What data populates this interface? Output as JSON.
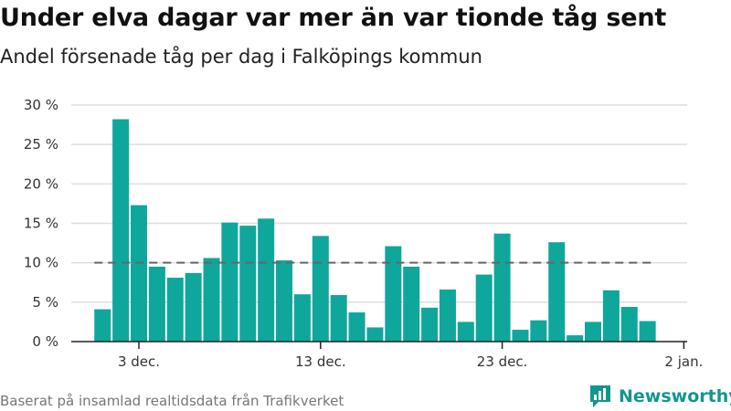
{
  "header": {
    "title": "Under elva dagar var mer än var tionde tåg sent",
    "subtitle": "Andel försenade tåg per dag i Falköpings kommun"
  },
  "footer": {
    "source": "Baserat på insamlad realtidsdata från Trafikverket",
    "brand": "Newsworthy",
    "brand_icon": "bar-chart-flag-icon"
  },
  "colors": {
    "bar": "#0fa79c",
    "reference_line": "#666666",
    "grid": "#dddddd",
    "axis": "#222222",
    "brand": "#129690"
  },
  "chart_data": {
    "type": "bar",
    "x_start_day": 1,
    "y_tick_labels": [
      "0 %",
      "5 %",
      "10 %",
      "15 %",
      "20 %",
      "25 %",
      "30 %"
    ],
    "y_ticks": [
      0,
      5,
      10,
      15,
      20,
      25,
      30
    ],
    "ylim": [
      0,
      30
    ],
    "x_tick_labels": [
      "3 dec.",
      "13 dec.",
      "23 dec.",
      "2 jan."
    ],
    "x_tick_days": [
      3,
      13,
      23,
      33
    ],
    "values": [
      4.1,
      28.2,
      17.3,
      9.5,
      8.1,
      8.7,
      10.6,
      15.1,
      14.7,
      15.6,
      10.3,
      6.0,
      13.4,
      5.9,
      3.7,
      1.8,
      12.1,
      9.5,
      4.3,
      6.6,
      2.5,
      8.5,
      13.7,
      1.5,
      2.7,
      12.6,
      0.8,
      2.5,
      6.5,
      4.4,
      2.6
    ],
    "reference_line": 10,
    "grid": true,
    "legend": "none"
  }
}
